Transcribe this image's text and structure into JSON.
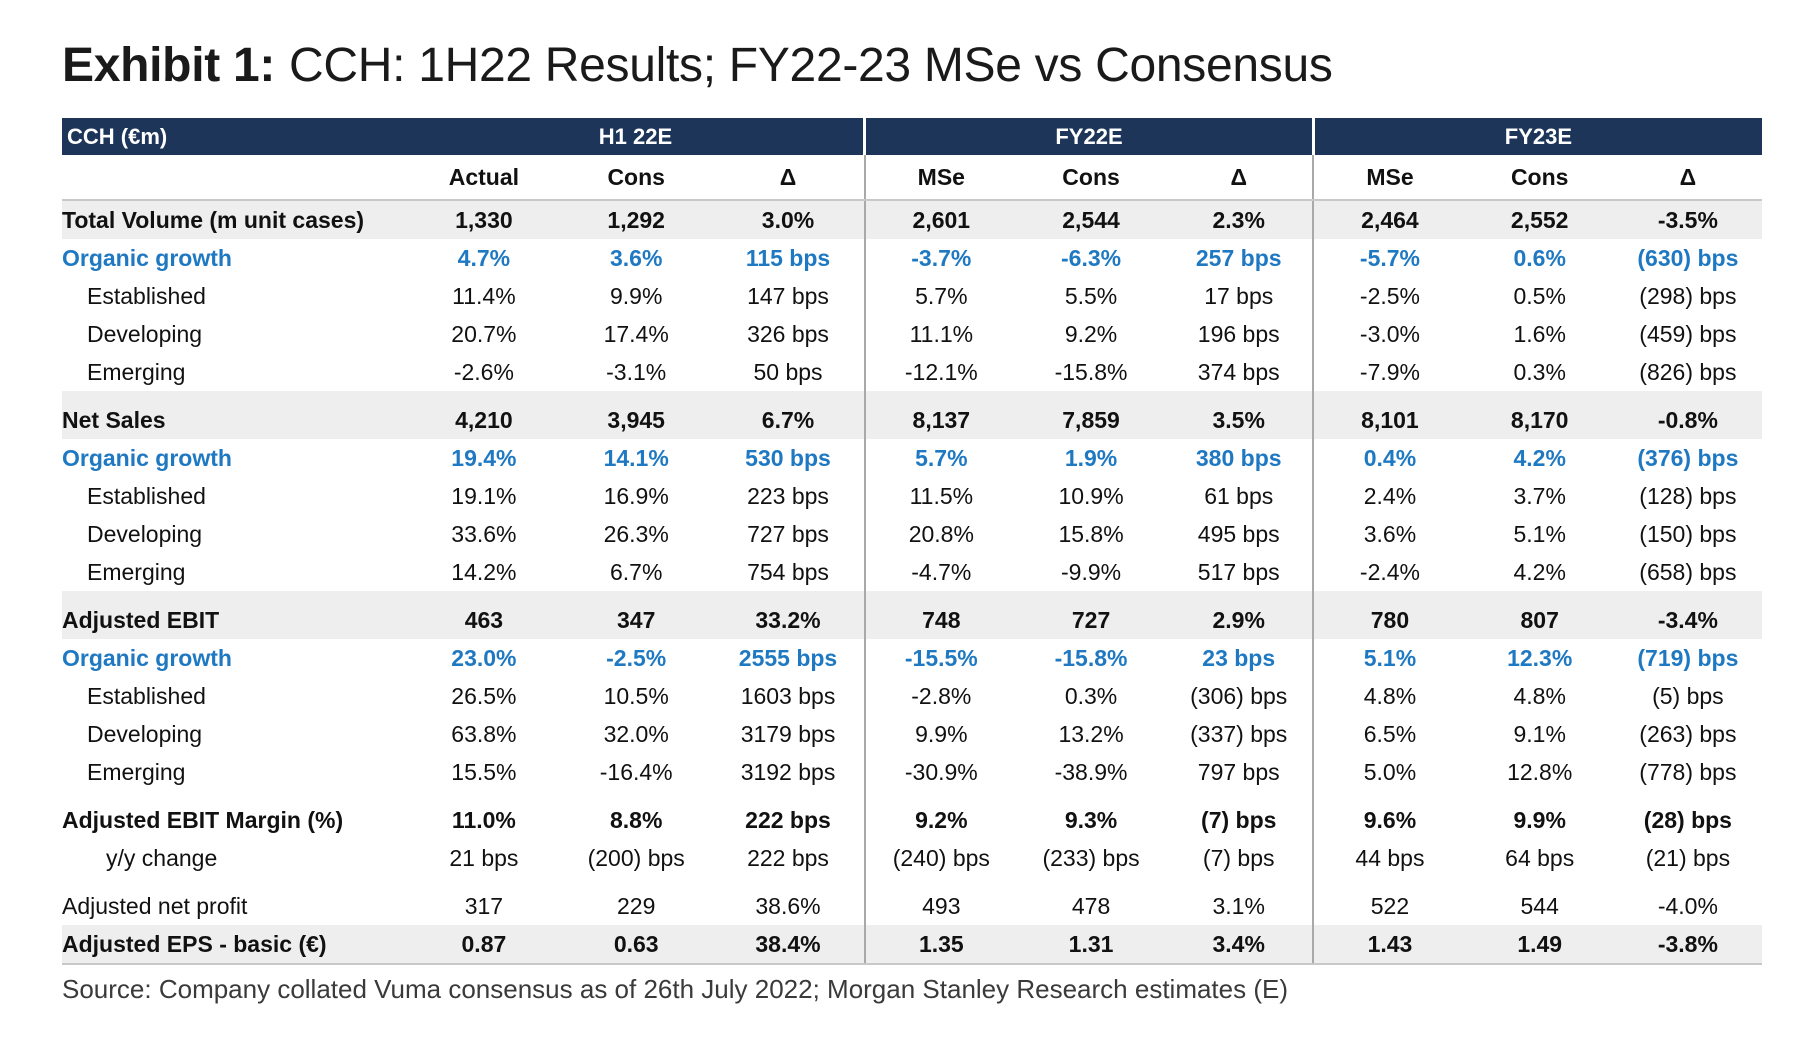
{
  "title": {
    "label": "Exhibit 1:",
    "text": "CCH: 1H22 Results; FY22-23 MSe vs Consensus"
  },
  "table": {
    "corner": "CCH (€m)",
    "groups": [
      "H1 22E",
      "FY22E",
      "FY23E"
    ],
    "columns": [
      "Actual",
      "Cons",
      "Δ",
      "MSe",
      "Cons",
      "Δ",
      "MSe",
      "Cons",
      "Δ"
    ],
    "rows": [
      {
        "label": "Total Volume (m unit cases)",
        "values": [
          "1,330",
          "1,292",
          "3.0%",
          "2,601",
          "2,544",
          "2.3%",
          "2,464",
          "2,552",
          "-3.5%"
        ]
      },
      {
        "label": "Organic growth",
        "values": [
          "4.7%",
          "3.6%",
          "115 bps",
          "-3.7%",
          "-6.3%",
          "257 bps",
          "-5.7%",
          "0.6%",
          "(630) bps"
        ]
      },
      {
        "label": "Established",
        "values": [
          "11.4%",
          "9.9%",
          "147 bps",
          "5.7%",
          "5.5%",
          "17 bps",
          "-2.5%",
          "0.5%",
          "(298) bps"
        ]
      },
      {
        "label": "Developing",
        "values": [
          "20.7%",
          "17.4%",
          "326 bps",
          "11.1%",
          "9.2%",
          "196 bps",
          "-3.0%",
          "1.6%",
          "(459) bps"
        ]
      },
      {
        "label": "Emerging",
        "values": [
          "-2.6%",
          "-3.1%",
          "50 bps",
          "-12.1%",
          "-15.8%",
          "374 bps",
          "-7.9%",
          "0.3%",
          "(826) bps"
        ]
      },
      {
        "label": "Net Sales",
        "values": [
          "4,210",
          "3,945",
          "6.7%",
          "8,137",
          "7,859",
          "3.5%",
          "8,101",
          "8,170",
          "-0.8%"
        ]
      },
      {
        "label": "Organic growth",
        "values": [
          "19.4%",
          "14.1%",
          "530 bps",
          "5.7%",
          "1.9%",
          "380 bps",
          "0.4%",
          "4.2%",
          "(376) bps"
        ]
      },
      {
        "label": "Established",
        "values": [
          "19.1%",
          "16.9%",
          "223 bps",
          "11.5%",
          "10.9%",
          "61 bps",
          "2.4%",
          "3.7%",
          "(128) bps"
        ]
      },
      {
        "label": "Developing",
        "values": [
          "33.6%",
          "26.3%",
          "727 bps",
          "20.8%",
          "15.8%",
          "495 bps",
          "3.6%",
          "5.1%",
          "(150) bps"
        ]
      },
      {
        "label": "Emerging",
        "values": [
          "14.2%",
          "6.7%",
          "754 bps",
          "-4.7%",
          "-9.9%",
          "517 bps",
          "-2.4%",
          "4.2%",
          "(658) bps"
        ]
      },
      {
        "label": "Adjusted EBIT",
        "values": [
          "463",
          "347",
          "33.2%",
          "748",
          "727",
          "2.9%",
          "780",
          "807",
          "-3.4%"
        ]
      },
      {
        "label": "Organic growth",
        "values": [
          "23.0%",
          "-2.5%",
          "2555 bps",
          "-15.5%",
          "-15.8%",
          "23 bps",
          "5.1%",
          "12.3%",
          "(719) bps"
        ]
      },
      {
        "label": "Established",
        "values": [
          "26.5%",
          "10.5%",
          "1603 bps",
          "-2.8%",
          "0.3%",
          "(306) bps",
          "4.8%",
          "4.8%",
          "(5) bps"
        ]
      },
      {
        "label": "Developing",
        "values": [
          "63.8%",
          "32.0%",
          "3179 bps",
          "9.9%",
          "13.2%",
          "(337) bps",
          "6.5%",
          "9.1%",
          "(263) bps"
        ]
      },
      {
        "label": "Emerging",
        "values": [
          "15.5%",
          "-16.4%",
          "3192 bps",
          "-30.9%",
          "-38.9%",
          "797 bps",
          "5.0%",
          "12.8%",
          "(778) bps"
        ]
      },
      {
        "label": "Adjusted EBIT Margin (%)",
        "values": [
          "11.0%",
          "8.8%",
          "222 bps",
          "9.2%",
          "9.3%",
          "(7) bps",
          "9.6%",
          "9.9%",
          "(28) bps"
        ]
      },
      {
        "label": "y/y change",
        "values": [
          "21 bps",
          "(200) bps",
          "222 bps",
          "(240) bps",
          "(233) bps",
          "(7) bps",
          "44 bps",
          "64 bps",
          "(21) bps"
        ]
      },
      {
        "label": "Adjusted net profit",
        "values": [
          "317",
          "229",
          "38.6%",
          "493",
          "478",
          "3.1%",
          "522",
          "544",
          "-4.0%"
        ]
      },
      {
        "label": "Adjusted EPS - basic (€)",
        "values": [
          "0.87",
          "0.63",
          "38.4%",
          "1.35",
          "1.31",
          "3.4%",
          "1.43",
          "1.49",
          "-3.8%"
        ]
      }
    ]
  },
  "source": "Source: Company collated Vuma consensus as of 26th July 2022; Morgan Stanley Research estimates (E)",
  "colors": {
    "header_band": "#1c3559",
    "organic_growth_text": "#1f79c2",
    "shaded_row": "#eeeeee"
  }
}
